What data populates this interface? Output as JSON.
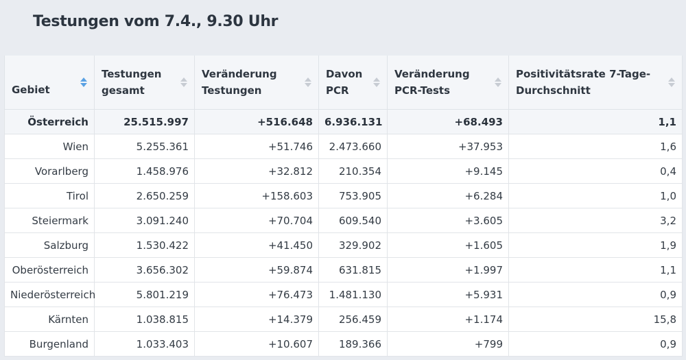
{
  "title": "Testungen vom 7.4., 9.30 Uhr",
  "columns": [
    {
      "label": "Gebiet"
    },
    {
      "label": "Testungen gesamt"
    },
    {
      "label": "Veränderung Testungen"
    },
    {
      "label": "Davon PCR"
    },
    {
      "label": "Veränderung PCR-Tests"
    },
    {
      "label": "Positivitätsrate 7-Tage-Durchschnitt"
    }
  ],
  "rows": [
    [
      "Österreich",
      "25.515.997",
      "+516.648",
      "6.936.131",
      "+68.493",
      "1,1"
    ],
    [
      "Wien",
      "5.255.361",
      "+51.746",
      "2.473.660",
      "+37.953",
      "1,6"
    ],
    [
      "Vorarlberg",
      "1.458.976",
      "+32.812",
      "210.354",
      "+9.145",
      "0,4"
    ],
    [
      "Tirol",
      "2.650.259",
      "+158.603",
      "753.905",
      "+6.284",
      "1,0"
    ],
    [
      "Steiermark",
      "3.091.240",
      "+70.704",
      "609.540",
      "+3.605",
      "3,2"
    ],
    [
      "Salzburg",
      "1.530.422",
      "+41.450",
      "329.902",
      "+1.605",
      "1,9"
    ],
    [
      "Oberösterreich",
      "3.656.302",
      "+59.874",
      "631.815",
      "+1.997",
      "1,1"
    ],
    [
      "Niederösterreich",
      "5.801.219",
      "+76.473",
      "1.481.130",
      "+5.931",
      "0,9"
    ],
    [
      "Kärnten",
      "1.038.815",
      "+14.379",
      "256.459",
      "+1.174",
      "15,8"
    ],
    [
      "Burgenland",
      "1.033.403",
      "+10.607",
      "189.366",
      "+799",
      "0,9"
    ]
  ],
  "sort": {
    "column": "Gebiet",
    "accent": "#5aa1e3",
    "icon": "sort-icon"
  }
}
